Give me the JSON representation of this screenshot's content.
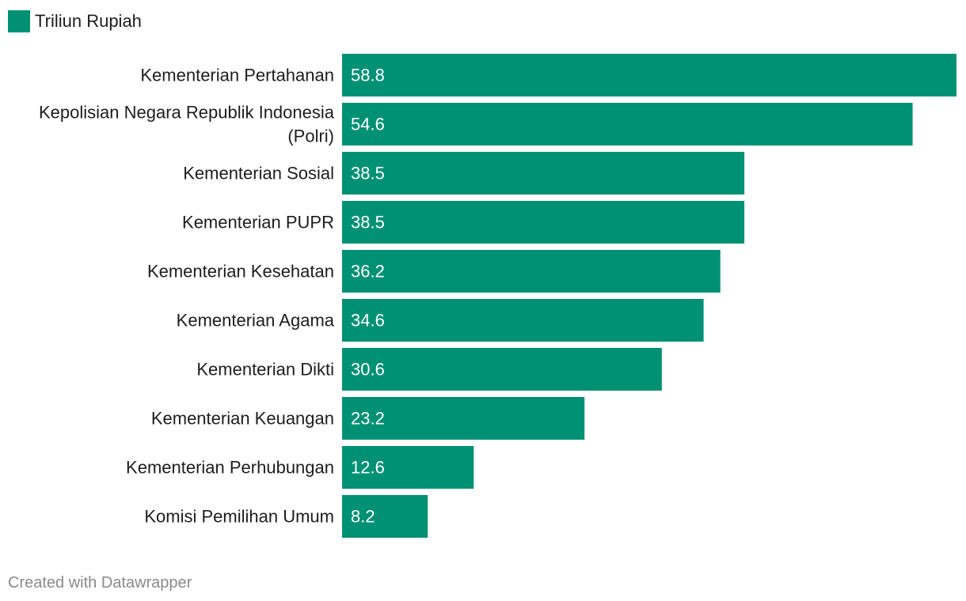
{
  "legend": {
    "label": "Triliun Rupiah",
    "color": "#009174"
  },
  "footer": {
    "credit": "Created with Datawrapper"
  },
  "chart_data": {
    "type": "bar",
    "orientation": "horizontal",
    "categories": [
      [
        "Kementerian Pertahanan"
      ],
      [
        "Kepolisian Negara Republik Indonesia",
        "(Polri)"
      ],
      [
        "Kementerian Sosial"
      ],
      [
        "Kementerian PUPR"
      ],
      [
        "Kementerian Kesehatan"
      ],
      [
        "Kementerian Agama"
      ],
      [
        "Kementerian Dikti"
      ],
      [
        "Kementerian Keuangan"
      ],
      [
        "Kementerian Perhubungan"
      ],
      [
        "Komisi Pemilihan Umum"
      ]
    ],
    "series": [
      {
        "name": "Triliun Rupiah",
        "color": "#009174",
        "values": [
          58.8,
          54.6,
          38.5,
          38.5,
          36.2,
          34.6,
          30.6,
          23.2,
          12.6,
          8.2
        ],
        "labels": [
          "58.8",
          "54.6",
          "38.5",
          "38.5",
          "36.2",
          "34.6",
          "30.6",
          "23.2",
          "12.6",
          "8.2"
        ]
      }
    ],
    "xlim": [
      0,
      58.8
    ],
    "grid": false,
    "legend_position": "top-left",
    "data_labels": "inside-left"
  }
}
